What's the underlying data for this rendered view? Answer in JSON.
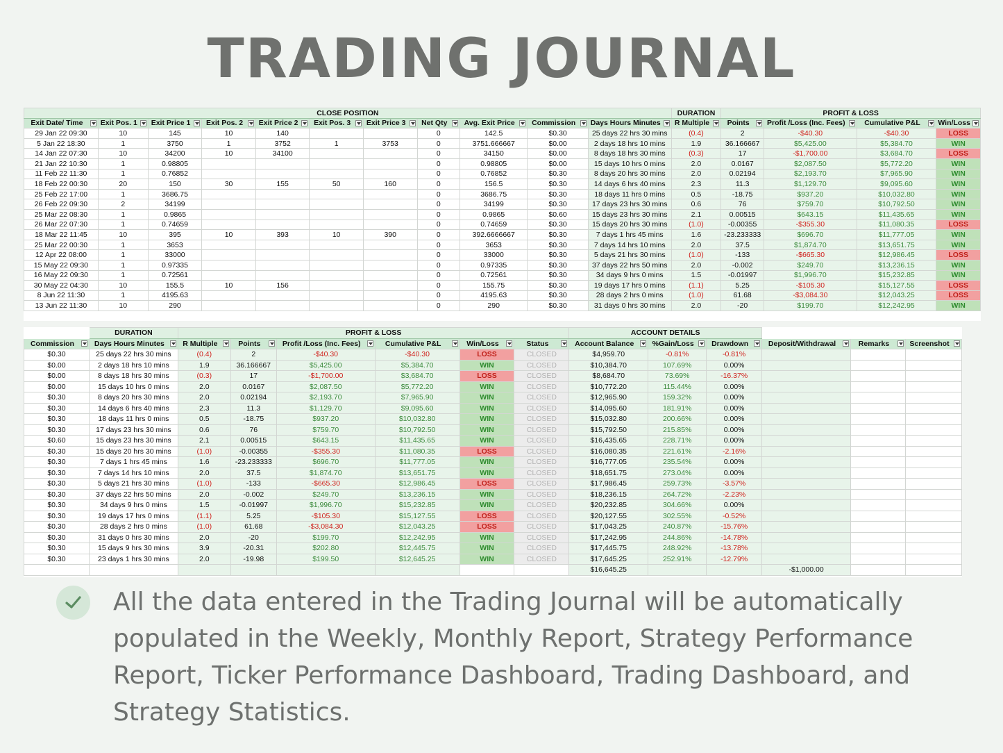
{
  "title": "TRADING JOURNAL",
  "caption": "All the data entered in the Trading Journal will be automatically populated in the Weekly, Monthly Report, Strategy Performance Report, Ticker Performance Dashboard, Trading Dashboard, and Strategy Statistics.",
  "check_icon": "checkmark-icon",
  "colors": {
    "win_fill": "#bfe1b9",
    "loss_fill": "#f2a0a0",
    "header_fill": "#cde9d3",
    "negative_text": "#d0211c",
    "positive_text": "#3c8a3c"
  },
  "sheet1": {
    "groups": [
      {
        "label": "CLOSE POSITION",
        "span": 11
      },
      {
        "label": "DURATION",
        "span": 1
      },
      {
        "label": "PROFIT & LOSS",
        "span": 5
      }
    ],
    "headers": [
      "Exit Date/ Time",
      "Exit Pos. 1",
      "Exit Price 1",
      "Exit Pos. 2",
      "Exit Price 2",
      "Exit Pos. 3",
      "Exit Price 3",
      "Net Qty",
      "Avg. Exit Price",
      "Commission",
      "Days Hours Minutes",
      "R Multiple",
      "Points",
      "Profit /Loss (Inc. Fees)",
      "Cumulative P&L",
      "Win/Loss"
    ],
    "rows": [
      [
        "29 Jan 22 09:30",
        "10",
        "145",
        "10",
        "140",
        "",
        "",
        "0",
        "142.5",
        "$0.30",
        "25 days 22 hrs 30 mins",
        "(0.4)",
        "2",
        "-$40.30",
        "-$40.30",
        "LOSS"
      ],
      [
        "5 Jan 22 18:30",
        "1",
        "3750",
        "1",
        "3752",
        "1",
        "3753",
        "0",
        "3751.666667",
        "$0.00",
        "2 days 18 hrs 10 mins",
        "1.9",
        "36.166667",
        "$5,425.00",
        "$5,384.70",
        "WIN"
      ],
      [
        "14 Jan 22 07:30",
        "10",
        "34200",
        "10",
        "34100",
        "",
        "",
        "0",
        "34150",
        "$0.00",
        "8 days 18 hrs 30 mins",
        "(0.3)",
        "17",
        "-$1,700.00",
        "$3,684.70",
        "LOSS"
      ],
      [
        "21 Jan 22 10:30",
        "1",
        "0.98805",
        "",
        "",
        "",
        "",
        "0",
        "0.98805",
        "$0.00",
        "15 days 10 hrs 0 mins",
        "2.0",
        "0.0167",
        "$2,087.50",
        "$5,772.20",
        "WIN"
      ],
      [
        "11 Feb 22 11:30",
        "1",
        "0.76852",
        "",
        "",
        "",
        "",
        "0",
        "0.76852",
        "$0.30",
        "8 days 20 hrs 30 mins",
        "2.0",
        "0.02194",
        "$2,193.70",
        "$7,965.90",
        "WIN"
      ],
      [
        "18 Feb 22 00:30",
        "20",
        "150",
        "30",
        "155",
        "50",
        "160",
        "0",
        "156.5",
        "$0.30",
        "14 days 6 hrs 40 mins",
        "2.3",
        "11.3",
        "$1,129.70",
        "$9,095.60",
        "WIN"
      ],
      [
        "25 Feb 22 17:00",
        "1",
        "3686.75",
        "",
        "",
        "",
        "",
        "0",
        "3686.75",
        "$0.30",
        "18 days 11 hrs 0 mins",
        "0.5",
        "-18.75",
        "$937.20",
        "$10,032.80",
        "WIN"
      ],
      [
        "26 Feb 22 09:30",
        "2",
        "34199",
        "",
        "",
        "",
        "",
        "0",
        "34199",
        "$0.30",
        "17 days 23 hrs 30 mins",
        "0.6",
        "76",
        "$759.70",
        "$10,792.50",
        "WIN"
      ],
      [
        "25 Mar 22 08:30",
        "1",
        "0.9865",
        "",
        "",
        "",
        "",
        "0",
        "0.9865",
        "$0.60",
        "15 days 23 hrs 30 mins",
        "2.1",
        "0.00515",
        "$643.15",
        "$11,435.65",
        "WIN"
      ],
      [
        "26 Mar 22 07:30",
        "1",
        "0.74659",
        "",
        "",
        "",
        "",
        "0",
        "0.74659",
        "$0.30",
        "15 days 20 hrs 30 mins",
        "(1.0)",
        "-0.00355",
        "-$355.30",
        "$11,080.35",
        "LOSS"
      ],
      [
        "18 Mar 22 11:45",
        "10",
        "395",
        "10",
        "393",
        "10",
        "390",
        "0",
        "392.6666667",
        "$0.30",
        "7 days 1 hrs 45 mins",
        "1.6",
        "-23.233333",
        "$696.70",
        "$11,777.05",
        "WIN"
      ],
      [
        "25 Mar 22 00:30",
        "1",
        "3653",
        "",
        "",
        "",
        "",
        "0",
        "3653",
        "$0.30",
        "7 days 14 hrs 10 mins",
        "2.0",
        "37.5",
        "$1,874.70",
        "$13,651.75",
        "WIN"
      ],
      [
        "12 Apr 22 08:00",
        "1",
        "33000",
        "",
        "",
        "",
        "",
        "0",
        "33000",
        "$0.30",
        "5 days 21 hrs 30 mins",
        "(1.0)",
        "-133",
        "-$665.30",
        "$12,986.45",
        "LOSS"
      ],
      [
        "15 May 22 09:30",
        "1",
        "0.97335",
        "",
        "",
        "",
        "",
        "0",
        "0.97335",
        "$0.30",
        "37 days 22 hrs 50 mins",
        "2.0",
        "-0.002",
        "$249.70",
        "$13,236.15",
        "WIN"
      ],
      [
        "16 May 22 09:30",
        "1",
        "0.72561",
        "",
        "",
        "",
        "",
        "0",
        "0.72561",
        "$0.30",
        "34 days 9 hrs 0 mins",
        "1.5",
        "-0.01997",
        "$1,996.70",
        "$15,232.85",
        "WIN"
      ],
      [
        "30 May 22 04:30",
        "10",
        "155.5",
        "10",
        "156",
        "",
        "",
        "0",
        "155.75",
        "$0.30",
        "19 days 17 hrs 0 mins",
        "(1.1)",
        "5.25",
        "-$105.30",
        "$15,127.55",
        "LOSS"
      ],
      [
        "8 Jun 22 11:30",
        "1",
        "4195.63",
        "",
        "",
        "",
        "",
        "0",
        "4195.63",
        "$0.30",
        "28 days 2 hrs 0 mins",
        "(1.0)",
        "61.68",
        "-$3,084.30",
        "$12,043.25",
        "LOSS"
      ],
      [
        "13 Jun 22 11:30",
        "10",
        "290",
        "",
        "",
        "",
        "",
        "0",
        "290",
        "$0.30",
        "31 days 0 hrs 30 mins",
        "2.0",
        "-20",
        "$199.70",
        "$12,242.95",
        "WIN"
      ]
    ]
  },
  "sheet2": {
    "groups": [
      {
        "label": "",
        "span": 1
      },
      {
        "label": "DURATION",
        "span": 1
      },
      {
        "label": "PROFIT & LOSS",
        "span": 6
      },
      {
        "label": "ACCOUNT DETAILS",
        "span": 3
      },
      {
        "label": "",
        "span": 3
      }
    ],
    "headers": [
      "Commission",
      "Days Hours Minutes",
      "R Multiple",
      "Points",
      "Profit /Loss (Inc. Fees)",
      "Cumulative P&L",
      "Win/Loss",
      "Status",
      "Account Balance",
      "%Gain/Loss",
      "Drawdown",
      "Deposit/Withdrawal",
      "Remarks",
      "Screenshot"
    ],
    "rows": [
      [
        "$0.30",
        "25 days 22 hrs 30 mins",
        "(0.4)",
        "2",
        "-$40.30",
        "-$40.30",
        "LOSS",
        "CLOSED",
        "$4,959.70",
        "-0.81%",
        "-0.81%",
        "",
        "",
        ""
      ],
      [
        "$0.00",
        "2 days 18 hrs 10 mins",
        "1.9",
        "36.166667",
        "$5,425.00",
        "$5,384.70",
        "WIN",
        "CLOSED",
        "$10,384.70",
        "107.69%",
        "0.00%",
        "",
        "",
        ""
      ],
      [
        "$0.00",
        "8 days 18 hrs 30 mins",
        "(0.3)",
        "17",
        "-$1,700.00",
        "$3,684.70",
        "LOSS",
        "CLOSED",
        "$8,684.70",
        "73.69%",
        "-16.37%",
        "",
        "",
        ""
      ],
      [
        "$0.00",
        "15 days 10 hrs 0 mins",
        "2.0",
        "0.0167",
        "$2,087.50",
        "$5,772.20",
        "WIN",
        "CLOSED",
        "$10,772.20",
        "115.44%",
        "0.00%",
        "",
        "",
        ""
      ],
      [
        "$0.30",
        "8 days 20 hrs 30 mins",
        "2.0",
        "0.02194",
        "$2,193.70",
        "$7,965.90",
        "WIN",
        "CLOSED",
        "$12,965.90",
        "159.32%",
        "0.00%",
        "",
        "",
        ""
      ],
      [
        "$0.30",
        "14 days 6 hrs 40 mins",
        "2.3",
        "11.3",
        "$1,129.70",
        "$9,095.60",
        "WIN",
        "CLOSED",
        "$14,095.60",
        "181.91%",
        "0.00%",
        "",
        "",
        ""
      ],
      [
        "$0.30",
        "18 days 11 hrs 0 mins",
        "0.5",
        "-18.75",
        "$937.20",
        "$10,032.80",
        "WIN",
        "CLOSED",
        "$15,032.80",
        "200.66%",
        "0.00%",
        "",
        "",
        ""
      ],
      [
        "$0.30",
        "17 days 23 hrs 30 mins",
        "0.6",
        "76",
        "$759.70",
        "$10,792.50",
        "WIN",
        "CLOSED",
        "$15,792.50",
        "215.85%",
        "0.00%",
        "",
        "",
        ""
      ],
      [
        "$0.60",
        "15 days 23 hrs 30 mins",
        "2.1",
        "0.00515",
        "$643.15",
        "$11,435.65",
        "WIN",
        "CLOSED",
        "$16,435.65",
        "228.71%",
        "0.00%",
        "",
        "",
        ""
      ],
      [
        "$0.30",
        "15 days 20 hrs 30 mins",
        "(1.0)",
        "-0.00355",
        "-$355.30",
        "$11,080.35",
        "LOSS",
        "CLOSED",
        "$16,080.35",
        "221.61%",
        "-2.16%",
        "",
        "",
        ""
      ],
      [
        "$0.30",
        "7 days 1 hrs 45 mins",
        "1.6",
        "-23.233333",
        "$696.70",
        "$11,777.05",
        "WIN",
        "CLOSED",
        "$16,777.05",
        "235.54%",
        "0.00%",
        "",
        "",
        ""
      ],
      [
        "$0.30",
        "7 days 14 hrs 10 mins",
        "2.0",
        "37.5",
        "$1,874.70",
        "$13,651.75",
        "WIN",
        "CLOSED",
        "$18,651.75",
        "273.04%",
        "0.00%",
        "",
        "",
        ""
      ],
      [
        "$0.30",
        "5 days 21 hrs 30 mins",
        "(1.0)",
        "-133",
        "-$665.30",
        "$12,986.45",
        "LOSS",
        "CLOSED",
        "$17,986.45",
        "259.73%",
        "-3.57%",
        "",
        "",
        ""
      ],
      [
        "$0.30",
        "37 days 22 hrs 50 mins",
        "2.0",
        "-0.002",
        "$249.70",
        "$13,236.15",
        "WIN",
        "CLOSED",
        "$18,236.15",
        "264.72%",
        "-2.23%",
        "",
        "",
        ""
      ],
      [
        "$0.30",
        "34 days 9 hrs 0 mins",
        "1.5",
        "-0.01997",
        "$1,996.70",
        "$15,232.85",
        "WIN",
        "CLOSED",
        "$20,232.85",
        "304.66%",
        "0.00%",
        "",
        "",
        ""
      ],
      [
        "$0.30",
        "19 days 17 hrs 0 mins",
        "(1.1)",
        "5.25",
        "-$105.30",
        "$15,127.55",
        "LOSS",
        "CLOSED",
        "$20,127.55",
        "302.55%",
        "-0.52%",
        "",
        "",
        ""
      ],
      [
        "$0.30",
        "28 days 2 hrs 0 mins",
        "(1.0)",
        "61.68",
        "-$3,084.30",
        "$12,043.25",
        "LOSS",
        "CLOSED",
        "$17,043.25",
        "240.87%",
        "-15.76%",
        "",
        "",
        ""
      ],
      [
        "$0.30",
        "31 days 0 hrs 30 mins",
        "2.0",
        "-20",
        "$199.70",
        "$12,242.95",
        "WIN",
        "CLOSED",
        "$17,242.95",
        "244.86%",
        "-14.78%",
        "",
        "",
        ""
      ],
      [
        "$0.30",
        "15 days 9 hrs 30 mins",
        "3.9",
        "-20.31",
        "$202.80",
        "$12,445.75",
        "WIN",
        "CLOSED",
        "$17,445.75",
        "248.92%",
        "-13.78%",
        "",
        "",
        ""
      ],
      [
        "$0.30",
        "23 days 1 hrs 30 mins",
        "2.0",
        "-19.98",
        "$199.50",
        "$12,645.25",
        "WIN",
        "CLOSED",
        "$17,645.25",
        "252.91%",
        "-12.79%",
        "",
        "",
        ""
      ],
      [
        "",
        "",
        "",
        "",
        "",
        "",
        "",
        "",
        "$16,645.25",
        "",
        "",
        "-$1,000.00",
        "",
        ""
      ]
    ]
  }
}
